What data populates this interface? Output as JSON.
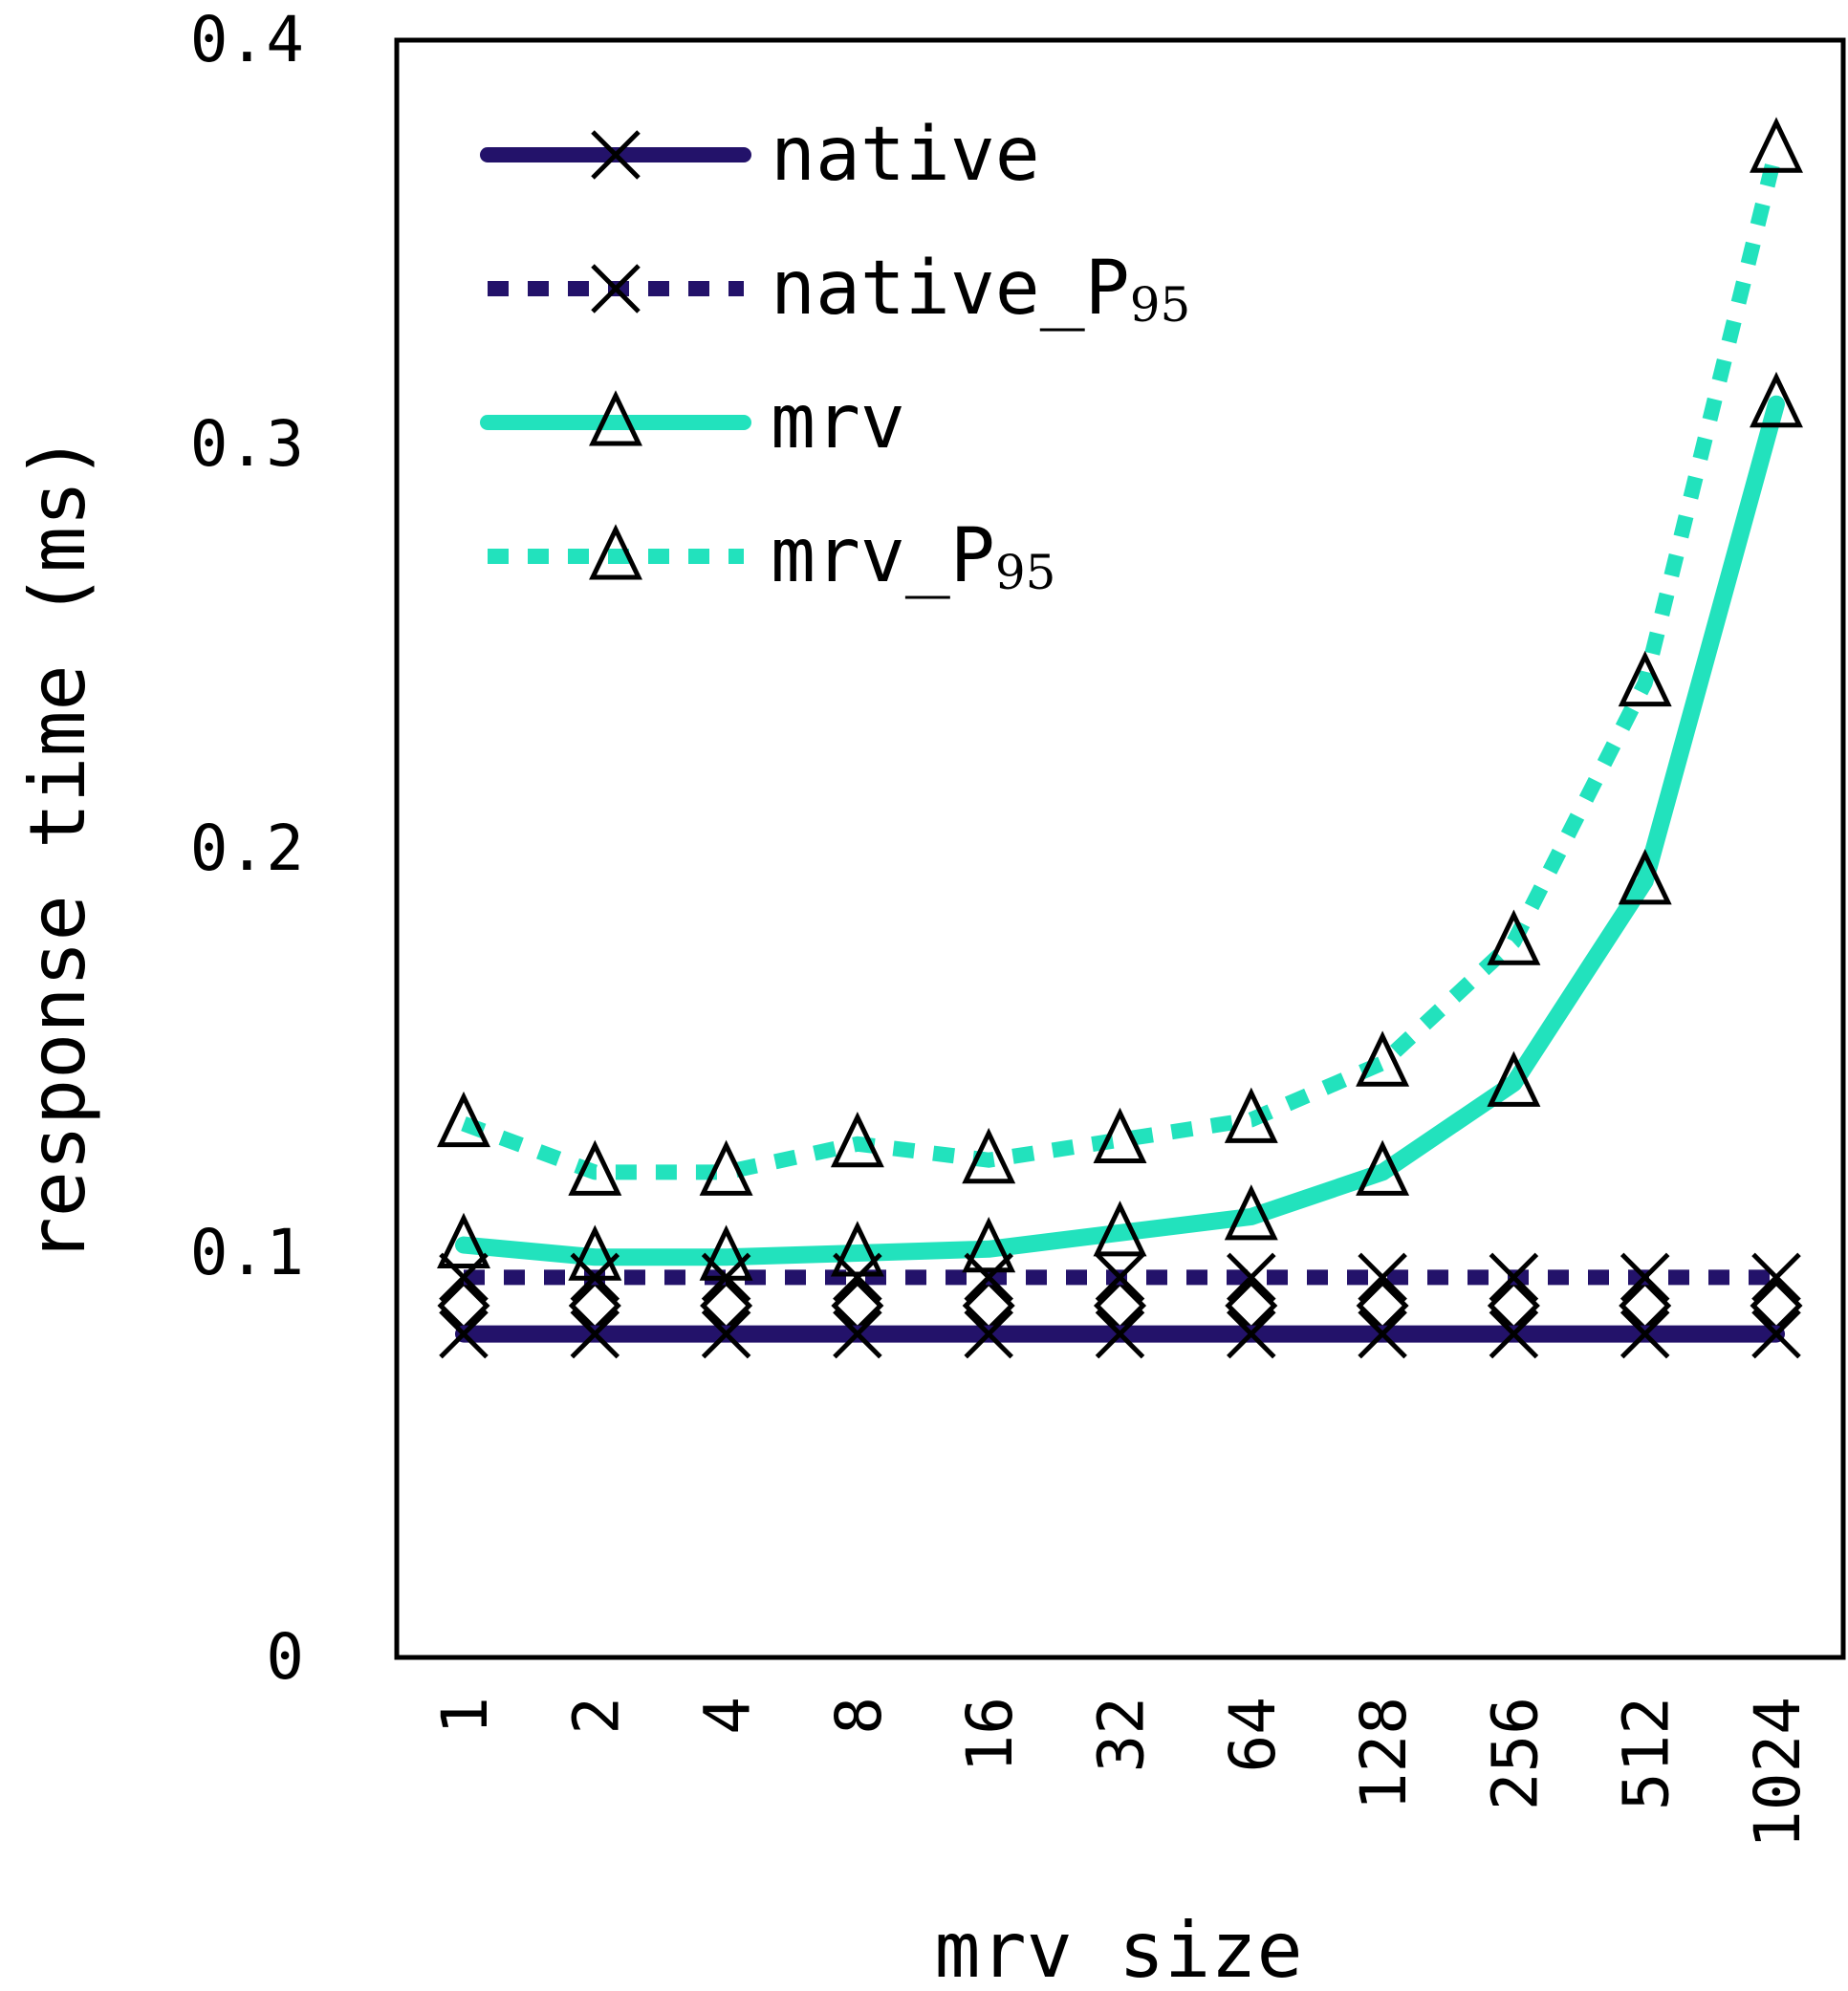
{
  "chart_data": {
    "type": "line",
    "xlabel": "mrv size",
    "ylabel": "response time (ms)",
    "categories": [
      "1",
      "2",
      "4",
      "8",
      "16",
      "32",
      "64",
      "128",
      "256",
      "512",
      "1024"
    ],
    "ylim": [
      0,
      0.4
    ],
    "yticks": [
      "0",
      "0.1",
      "0.2",
      "0.3",
      "0.4"
    ],
    "grid": false,
    "legend_position": "top-left",
    "series": [
      {
        "name": "native",
        "name_sub": "",
        "color": "#23126a",
        "line_style": "solid",
        "marker": "x",
        "values": [
          0.08,
          0.08,
          0.08,
          0.08,
          0.08,
          0.08,
          0.08,
          0.08,
          0.08,
          0.08,
          0.08
        ]
      },
      {
        "name": "native_P",
        "name_sub": "95",
        "color": "#23126a",
        "line_style": "dotted",
        "marker": "x",
        "values": [
          0.094,
          0.094,
          0.094,
          0.094,
          0.094,
          0.094,
          0.094,
          0.094,
          0.094,
          0.094,
          0.094
        ]
      },
      {
        "name": "mrv",
        "name_sub": "",
        "color": "#22e2bd",
        "line_style": "solid",
        "marker": "triangle",
        "values": [
          0.102,
          0.099,
          0.099,
          0.1,
          0.101,
          0.105,
          0.109,
          0.12,
          0.142,
          0.192,
          0.31
        ]
      },
      {
        "name": "mrv_P",
        "name_sub": "95",
        "color": "#22e2bd",
        "line_style": "dotted",
        "marker": "triangle",
        "values": [
          0.132,
          0.12,
          0.12,
          0.127,
          0.123,
          0.128,
          0.133,
          0.147,
          0.177,
          0.241,
          0.373
        ]
      }
    ],
    "extra_markers": {
      "marker": "diamond",
      "values": [
        0.087,
        0.087,
        0.087,
        0.087,
        0.087,
        0.087,
        0.087,
        0.087,
        0.087,
        0.087,
        0.087
      ]
    }
  }
}
